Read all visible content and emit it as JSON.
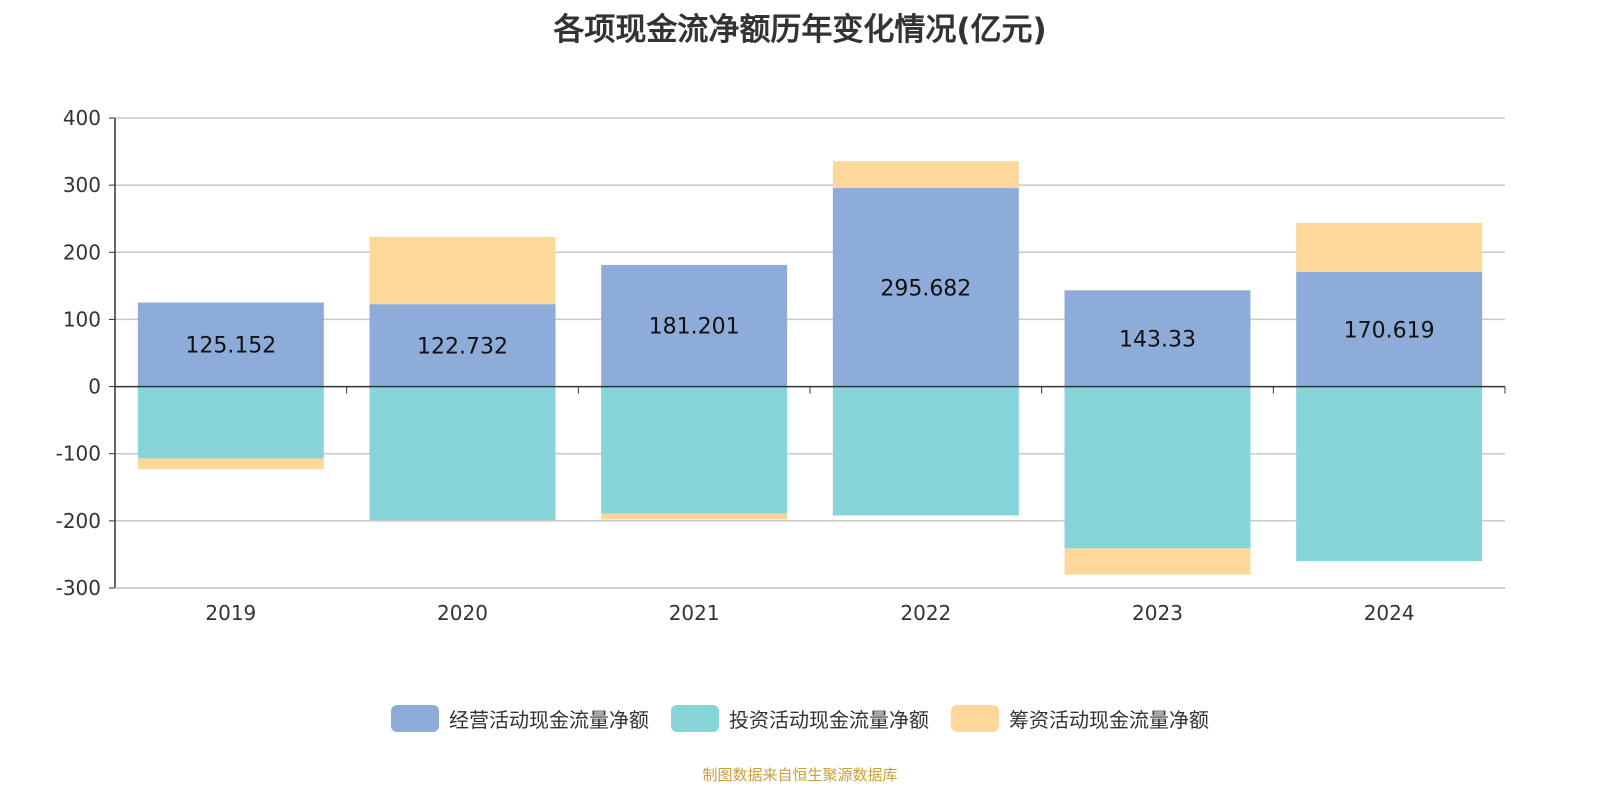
{
  "chart_data": {
    "type": "bar",
    "stacked": true,
    "title": "各项现金流净额历年变化情况(亿元)",
    "categories": [
      "2019",
      "2020",
      "2021",
      "2022",
      "2023",
      "2024"
    ],
    "series": [
      {
        "name": "经营活动现金流量净额",
        "color": "#8dacd9",
        "values": [
          125.152,
          122.732,
          181.201,
          295.682,
          143.33,
          170.619
        ],
        "labels": [
          "125.152",
          "122.732",
          "181.201",
          "295.682",
          "143.33",
          "170.619"
        ]
      },
      {
        "name": "投资活动现金流量净额",
        "color": "#87d5d9",
        "values": [
          -107,
          -199,
          -189,
          -192,
          -241,
          -260
        ]
      },
      {
        "name": "筹资活动现金流量净额",
        "color": "#fed89a",
        "values": [
          -16,
          100,
          -9,
          40,
          -39,
          73
        ]
      }
    ],
    "ylim": [
      -300,
      400
    ],
    "yticks": [
      "400",
      "300",
      "200",
      "100",
      "0",
      "-100",
      "-200",
      "-300"
    ],
    "grid": true,
    "legend_position": "bottom"
  },
  "source": "制图数据来自恒生聚源数据库"
}
